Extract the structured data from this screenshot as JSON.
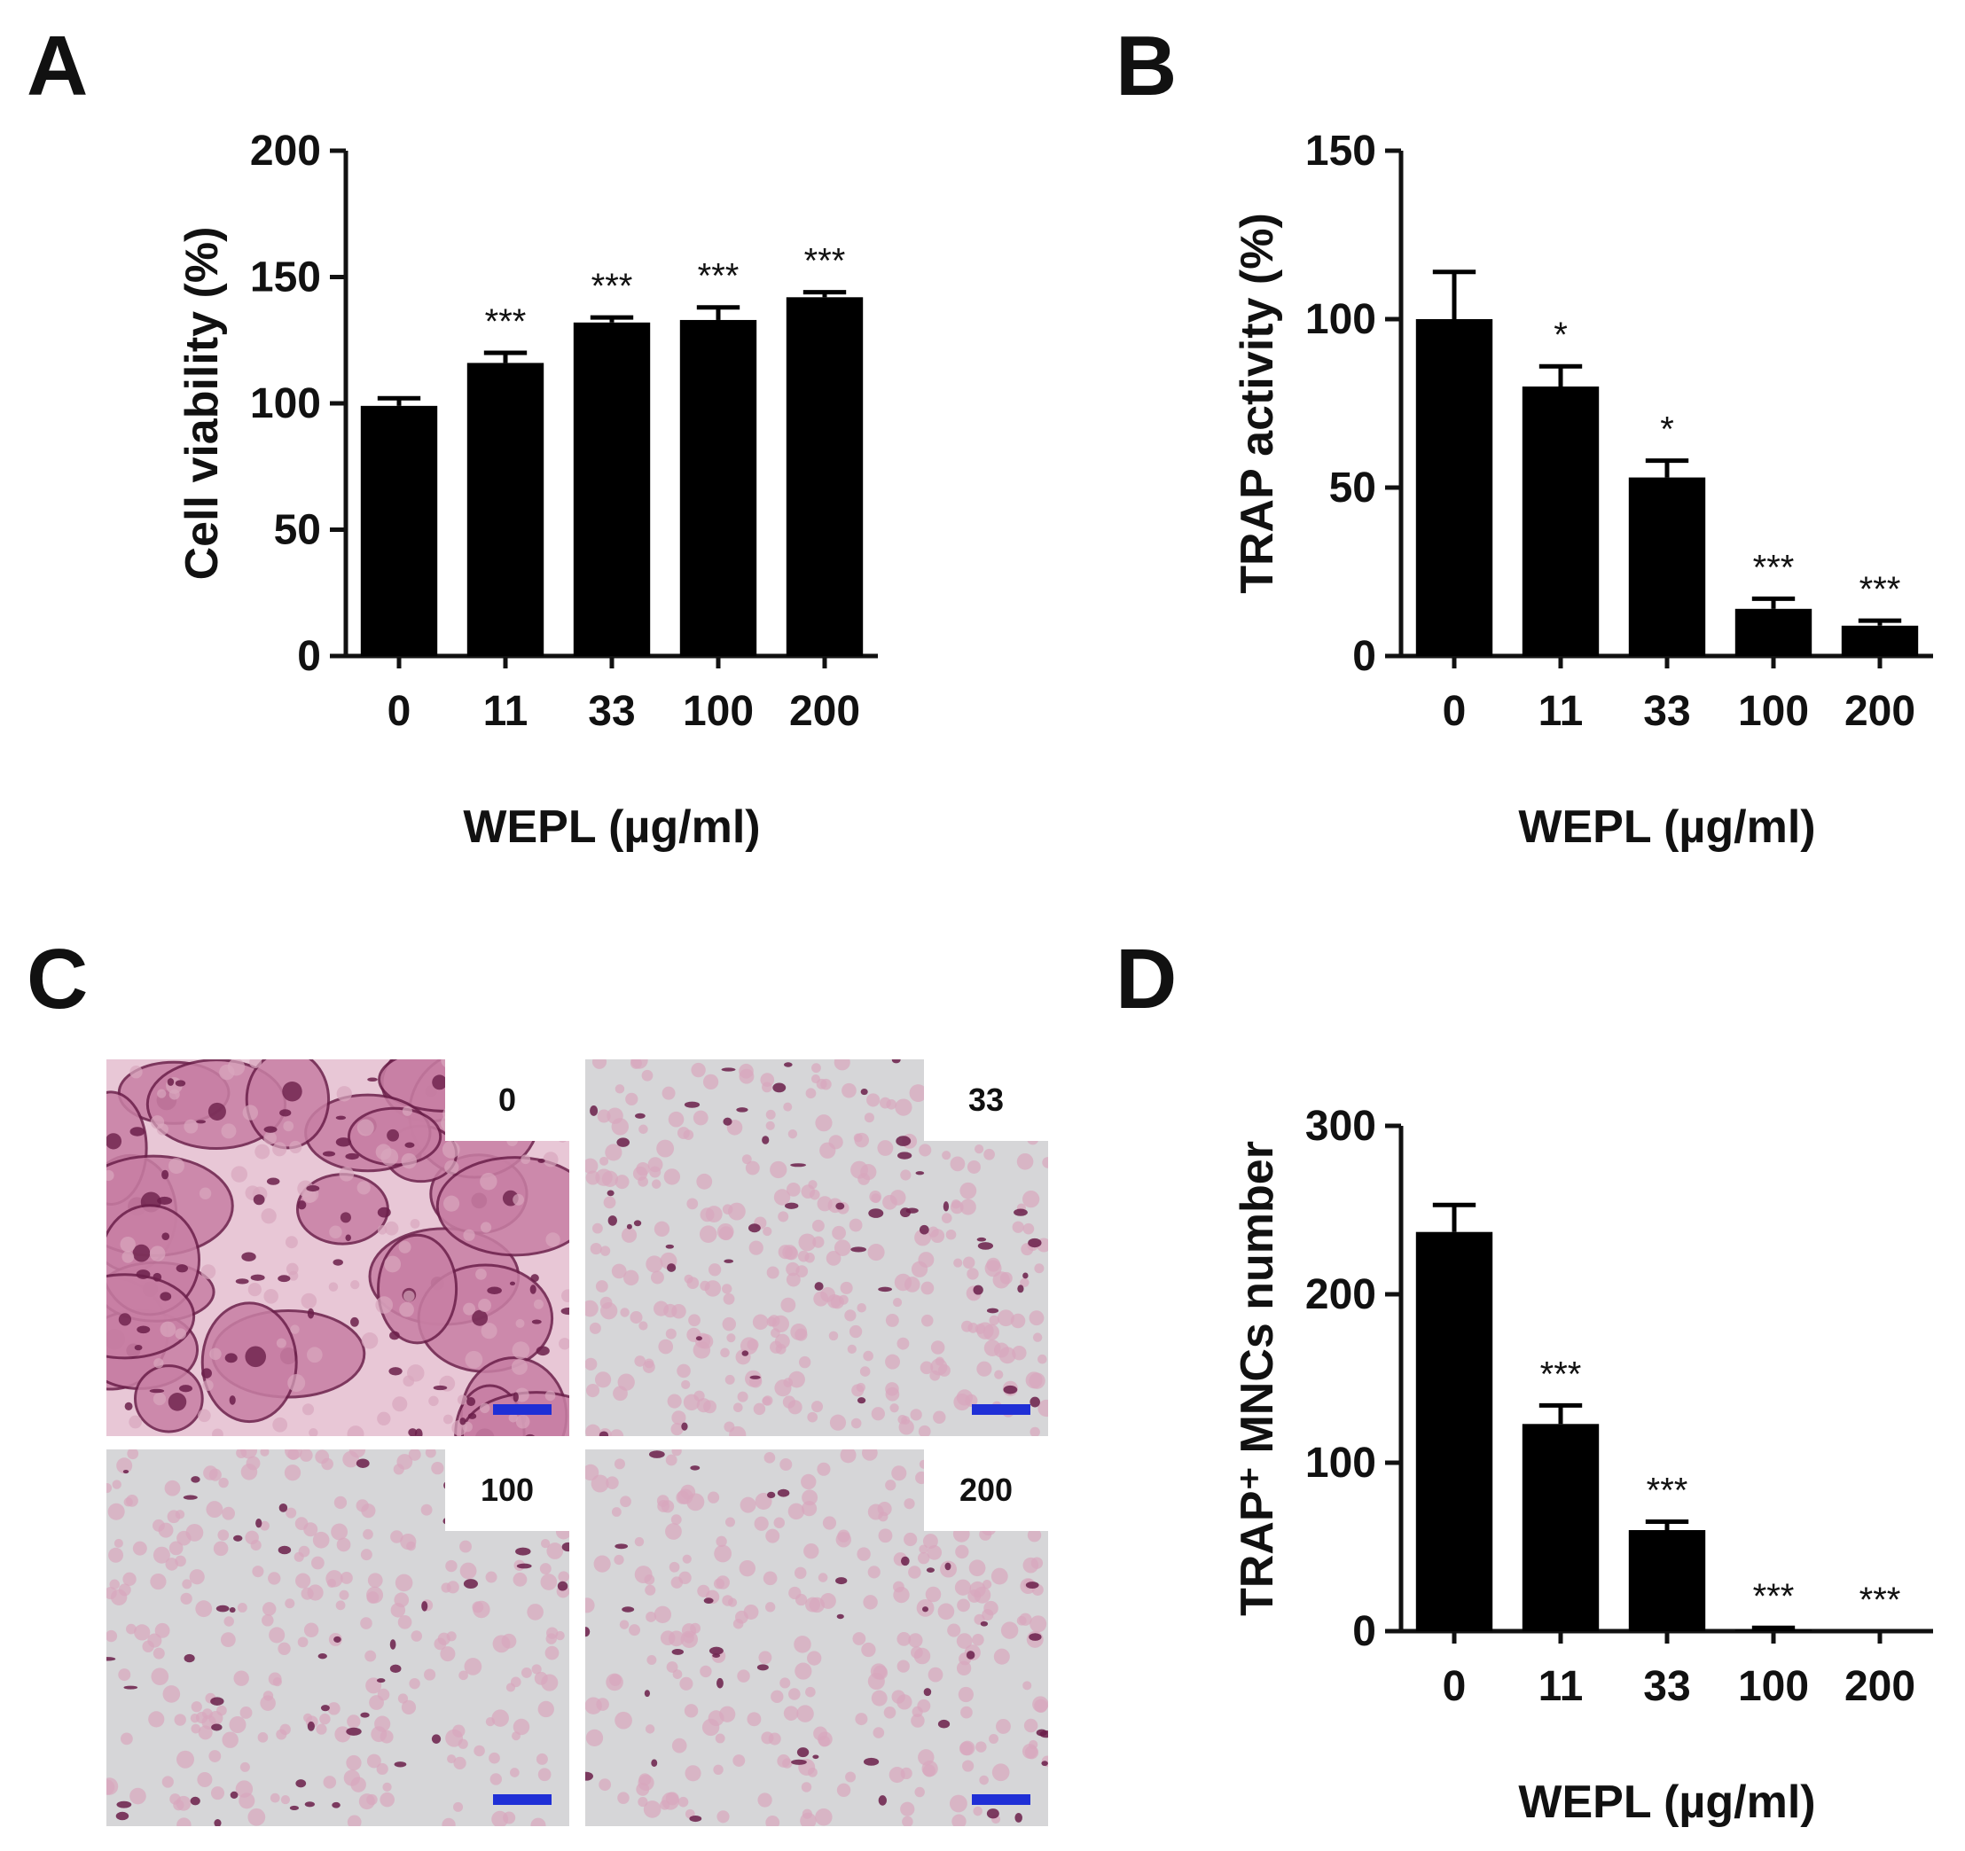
{
  "panels": {
    "A": "A",
    "B": "B",
    "C": "C",
    "D": "D"
  },
  "colors": {
    "bar": "#000000",
    "scale_bar": "#1f2fd6",
    "stain_pink": "#d9a7bd",
    "stain_dark": "#6b1f4a",
    "background_gray": "#d6d6d8"
  },
  "micrographs": {
    "labels": [
      "0",
      "33",
      "100",
      "200"
    ]
  },
  "chart_data": [
    {
      "id": "A",
      "type": "bar",
      "categories": [
        "0",
        "11",
        "33",
        "100",
        "200"
      ],
      "values": [
        99,
        116,
        132,
        133,
        142
      ],
      "errors": [
        3,
        4,
        2,
        5,
        2
      ],
      "significance": [
        "",
        "***",
        "***",
        "***",
        "***"
      ],
      "ylabel": "Cell viability (%)",
      "xlabel": "WEPL (µg/ml)",
      "ylim": [
        0,
        200
      ],
      "yticks": [
        0,
        50,
        100,
        150,
        200
      ]
    },
    {
      "id": "B",
      "type": "bar",
      "categories": [
        "0",
        "11",
        "33",
        "100",
        "200"
      ],
      "values": [
        100,
        80,
        53,
        14,
        9
      ],
      "errors": [
        14,
        6,
        5,
        3,
        1.5
      ],
      "significance": [
        "",
        "*",
        "*",
        "***",
        "***"
      ],
      "ylabel": "TRAP activity (%)",
      "xlabel": "WEPL (µg/ml)",
      "ylim": [
        0,
        150
      ],
      "yticks": [
        0,
        50,
        100,
        150
      ]
    },
    {
      "id": "D",
      "type": "bar",
      "categories": [
        "0",
        "11",
        "33",
        "100",
        "200"
      ],
      "values": [
        237,
        123,
        60,
        1,
        0
      ],
      "errors": [
        16,
        11,
        5,
        1,
        0
      ],
      "significance": [
        "",
        "***",
        "***",
        "***",
        "***"
      ],
      "ylabel": "TRAP⁺ MNCs number",
      "xlabel": "WEPL (µg/ml)",
      "ylim": [
        0,
        300
      ],
      "yticks": [
        0,
        100,
        200,
        300
      ]
    }
  ]
}
